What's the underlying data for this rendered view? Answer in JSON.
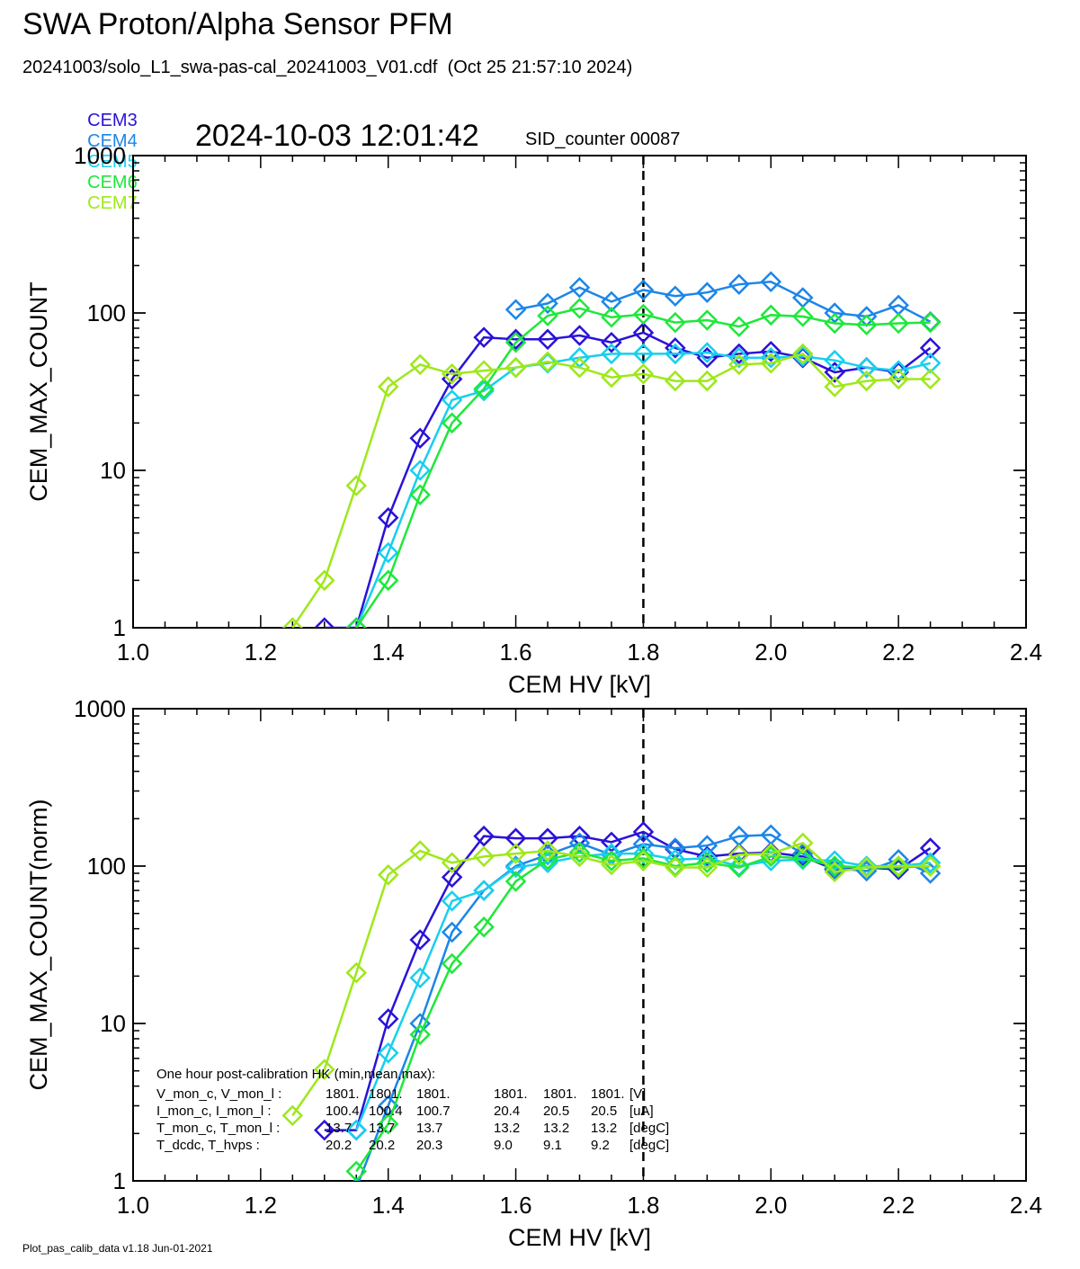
{
  "header": {
    "title": "SWA Proton/Alpha Sensor PFM",
    "subtitle": "20241003/solo_L1_swa-pas-cal_20241003_V01.cdf  (Oct 25 21:57:10 2024)",
    "timestamp": "2024-10-03 12:01:42",
    "sid_counter": "SID_counter 00087"
  },
  "legend": [
    {
      "name": "CEM3",
      "color": "#2a12d8"
    },
    {
      "name": "CEM4",
      "color": "#1c86e8"
    },
    {
      "name": "CEM5",
      "color": "#18cfee"
    },
    {
      "name": "CEM6",
      "color": "#1ee83a"
    },
    {
      "name": "CEM7",
      "color": "#9ee81a"
    }
  ],
  "footer": "Plot_pas_calib_data v1.18 Jun-01-2021",
  "hk_box": {
    "title": "One hour post-calibration HK (min,mean,max):",
    "rows": [
      {
        "label": "V_mon_c, V_mon_l :",
        "c": [
          "1801.",
          "1801.",
          "1801."
        ],
        "l": [
          "1801.",
          "1801.",
          "1801."
        ],
        "unit": "[V]"
      },
      {
        "label": "I_mon_c, I_mon_l :",
        "c": [
          "100.4",
          "100.4",
          "100.7"
        ],
        "l": [
          "20.4",
          "20.5",
          "20.5"
        ],
        "unit": "[uA]"
      },
      {
        "label": "T_mon_c, T_mon_l :",
        "c": [
          "13.7",
          "13.7",
          "13.7"
        ],
        "l": [
          "13.2",
          "13.2",
          "13.2"
        ],
        "unit": "[degC]"
      },
      {
        "label": "T_dcdc,    T_hvps :",
        "c": [
          "20.2",
          "20.2",
          "20.3"
        ],
        "l": [
          "9.0",
          "9.1",
          "9.2"
        ],
        "unit": "[degC]"
      }
    ]
  },
  "chart_data": [
    {
      "type": "line",
      "xlabel": "CEM HV [kV]",
      "ylabel": "CEM_MAX_COUNT",
      "xlim": [
        1.0,
        2.4
      ],
      "ylim": [
        1,
        1000
      ],
      "yscale": "log",
      "x_ticks": [
        "1.0",
        "1.2",
        "1.4",
        "1.6",
        "1.8",
        "2.0",
        "2.2",
        "2.4"
      ],
      "y_ticks": [
        "1",
        "10",
        "100",
        "1000"
      ],
      "marker": "diamond",
      "vline": 1.8,
      "x": [
        1.25,
        1.3,
        1.35,
        1.4,
        1.45,
        1.5,
        1.55,
        1.6,
        1.65,
        1.7,
        1.75,
        1.8,
        1.85,
        1.9,
        1.95,
        2.0,
        2.05,
        2.1,
        2.15,
        2.2,
        2.25
      ],
      "series": [
        {
          "name": "CEM3",
          "values": [
            null,
            1,
            1,
            5,
            16,
            38,
            70,
            68,
            68,
            72,
            65,
            75,
            60,
            52,
            55,
            57,
            52,
            42,
            45,
            42,
            60
          ]
        },
        {
          "name": "CEM4",
          "values": [
            null,
            null,
            null,
            null,
            null,
            null,
            null,
            105,
            115,
            145,
            118,
            140,
            128,
            135,
            152,
            158,
            125,
            100,
            95,
            112,
            88
          ]
        },
        {
          "name": "CEM5",
          "values": [
            null,
            null,
            1,
            3,
            10,
            28,
            32,
            45,
            48,
            52,
            55,
            55,
            55,
            56,
            52,
            52,
            53,
            50,
            45,
            43,
            48
          ]
        },
        {
          "name": "CEM6",
          "values": [
            null,
            null,
            1,
            2,
            7,
            20,
            33,
            65,
            96,
            107,
            94,
            98,
            87,
            90,
            82,
            97,
            95,
            86,
            84,
            86,
            87
          ]
        },
        {
          "name": "CEM7",
          "values": [
            1,
            2,
            8,
            34,
            47,
            41,
            43,
            45,
            49,
            45,
            39,
            41,
            37,
            37,
            47,
            48,
            55,
            34,
            37,
            38,
            38
          ]
        }
      ]
    },
    {
      "type": "line",
      "xlabel": "CEM HV [kV]",
      "ylabel": "CEM_MAX_COUNT(norm)",
      "xlim": [
        1.0,
        2.4
      ],
      "ylim": [
        1,
        1000
      ],
      "yscale": "log",
      "x_ticks": [
        "1.0",
        "1.2",
        "1.4",
        "1.6",
        "1.8",
        "2.0",
        "2.2",
        "2.4"
      ],
      "y_ticks": [
        "1",
        "10",
        "100",
        "1000"
      ],
      "marker": "diamond",
      "vline": 1.8,
      "x": [
        1.25,
        1.3,
        1.35,
        1.4,
        1.45,
        1.5,
        1.55,
        1.6,
        1.65,
        1.7,
        1.75,
        1.8,
        1.85,
        1.9,
        1.95,
        2.0,
        2.05,
        2.1,
        2.15,
        2.2,
        2.25
      ],
      "series": [
        {
          "name": "CEM3",
          "values": [
            null,
            2.1,
            2.1,
            10.7,
            34,
            85,
            155,
            150,
            150,
            155,
            142,
            165,
            128,
            115,
            120,
            122,
            115,
            95,
            98,
            95,
            130
          ]
        },
        {
          "name": "CEM4",
          "values": [
            null,
            null,
            0.9,
            3,
            10,
            38,
            70,
            100,
            118,
            140,
            118,
            138,
            130,
            135,
            155,
            158,
            120,
            97,
            93,
            110,
            90
          ]
        },
        {
          "name": "CEM5",
          "values": [
            null,
            null,
            2.1,
            6.5,
            19.5,
            60,
            70,
            98,
            105,
            115,
            120,
            120,
            110,
            112,
            100,
            108,
            110,
            108,
            100,
            100,
            105
          ]
        },
        {
          "name": "CEM6",
          "values": [
            null,
            null,
            1.15,
            2.3,
            8.5,
            24,
            41,
            80,
            110,
            122,
            108,
            112,
            100,
            105,
            98,
            115,
            112,
            100,
            98,
            98,
            100
          ]
        },
        {
          "name": "CEM7",
          "values": [
            2.6,
            5.1,
            21,
            88,
            125,
            105,
            115,
            120,
            125,
            115,
            102,
            108,
            98,
            98,
            118,
            120,
            140,
            92,
            98,
            100,
            100
          ]
        }
      ]
    }
  ]
}
